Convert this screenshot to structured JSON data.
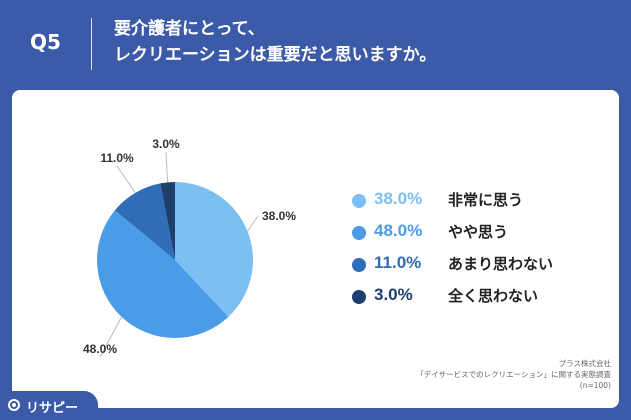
{
  "header": {
    "question": "Q5",
    "title_line1": "要介護者にとって、",
    "title_line2": "レクリエーションは重要だと思いますか。"
  },
  "chart_data": {
    "type": "pie",
    "title": "",
    "slices": [
      {
        "name": "非常に思う",
        "value": 38.0,
        "label": "38.0%",
        "color": "#7cbff3"
      },
      {
        "name": "やや思う",
        "value": 48.0,
        "label": "48.0%",
        "color": "#4a9be8"
      },
      {
        "name": "あまり思わない",
        "value": 11.0,
        "label": "11.0%",
        "color": "#2f6db8"
      },
      {
        "name": "全く思わない",
        "value": 3.0,
        "label": "3.0%",
        "color": "#1e3f6e"
      }
    ],
    "legend_placement": "right"
  },
  "source": {
    "line1": "プラス株式会社",
    "line2": "「デイサービスでのレクリエーション」に関する実態調査",
    "line3": "(n=100)"
  },
  "logo": {
    "text": "リサピー",
    "mark": "pin-logo-icon"
  },
  "colors": {
    "background": "#3b5aa8",
    "panel": "#ffffff"
  }
}
